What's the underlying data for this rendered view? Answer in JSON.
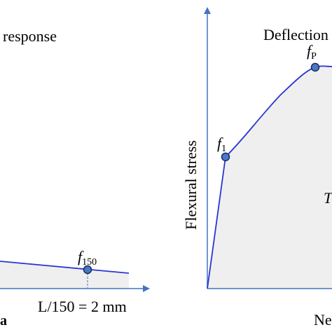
{
  "colors": {
    "axis": "#4472c4",
    "curve": "#2a35d4",
    "fill": "#efefef",
    "marker_fill": "#4a78c9",
    "marker_stroke": "#1b2a5e"
  },
  "left_panel": {
    "title_fragment": "response",
    "point_label_main": "f",
    "point_label_sub": "150",
    "x_tick_label": "L/150 = 2 mm",
    "corner_fragment": "a"
  },
  "right_panel": {
    "title_fragment": "Deflection",
    "y_axis_label": "Flexural stress",
    "x_axis_fragment": "Ne",
    "area_label_fragment": "T",
    "point_first_main": "f",
    "point_first_sub": "1",
    "point_peak_main": "f",
    "point_peak_sub": "P"
  }
}
